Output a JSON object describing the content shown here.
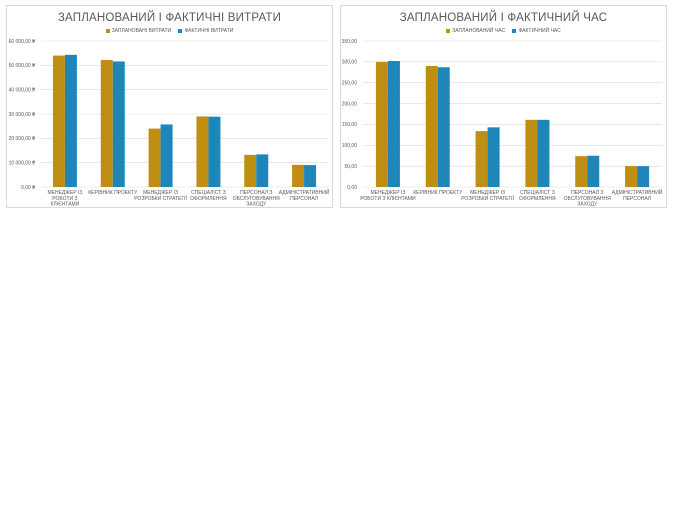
{
  "colors": {
    "planned": "#BF8F14",
    "actual": "#1F86B9",
    "grid": "#d9d9d9",
    "text": "#595959"
  },
  "chart_data": [
    {
      "type": "bar",
      "title": "ЗАПЛАНОВАНИЙ І ФАКТИЧНІ ВИТРАТИ",
      "categories": [
        [
          "МЕНЕДЖЕР ІЗ",
          "РОБОТИ З",
          "КЛІЄНТАМИ"
        ],
        [
          "КЕРІВНИК ПРОЕКТУ"
        ],
        [
          "МЕНЕДЖЕР ІЗ",
          "РОЗРОБКИ СТРАТЕГІЇ"
        ],
        [
          "СПЕЦІАЛІСТ З",
          "ОФОРМЛЕННЯ"
        ],
        [
          "ПЕРСОНАЛ З",
          "ОБСЛУГОВУВАННЯ",
          "ЗАХОДУ"
        ],
        [
          "АДМІНІСТРАТИВНИЙ",
          "ПЕРСОНАЛ"
        ]
      ],
      "series": [
        {
          "name": "ЗАПЛАНОВАНІ ВИТРАТИ",
          "values": [
            54000,
            52200,
            24000,
            29000,
            13200,
            9100
          ]
        },
        {
          "name": "ФАКТИЧНІ ВИТРАТИ",
          "values": [
            54300,
            51600,
            25700,
            28900,
            13400,
            9000
          ]
        }
      ],
      "yticks": [
        "0,00 ₴",
        "10 000,00 ₴",
        "20 000,00 ₴",
        "30 000,00 ₴",
        "40 000,00 ₴",
        "50 000,00 ₴",
        "60 000,00 ₴"
      ],
      "ylim": [
        0,
        60000
      ],
      "legend": "top",
      "grid": true
    },
    {
      "type": "bar",
      "title": "ЗАПЛАНОВАНИЙ І ФАКТИЧНИЙ ЧАС",
      "categories": [
        [
          "МЕНЕДЖЕР ІЗ",
          "РОБОТИ З КЛІЄНТАМИ"
        ],
        [
          "КЕРІВНИК ПРОЕКТУ"
        ],
        [
          "МЕНЕДЖЕР ІЗ",
          "РОЗРОБКИ СТРАТЕГІЇ"
        ],
        [
          "СПЕЦІАЛІСТ З",
          "ОФОРМЛЕННЯ"
        ],
        [
          "ПЕРСОНАЛ З",
          "ОБСЛУГОВУВАННЯ",
          "ЗАХОДУ"
        ],
        [
          "АДМІНІСТРАТИВНИЙ",
          "ПЕРСОНАЛ"
        ]
      ],
      "series": [
        {
          "name": "ЗАПЛАНОВАНИЙ ЧАС",
          "values": [
            300,
            290,
            134,
            161,
            74,
            50
          ]
        },
        {
          "name": "ФАКТИЧНИЙ ЧАС",
          "values": [
            302,
            287,
            143,
            161,
            75,
            50
          ]
        }
      ],
      "yticks": [
        "0,00",
        "50,00",
        "100,00",
        "150,00",
        "200,00",
        "250,00",
        "300,00",
        "350,00"
      ],
      "ylim": [
        0,
        350
      ],
      "legend": "top",
      "grid": true
    }
  ]
}
